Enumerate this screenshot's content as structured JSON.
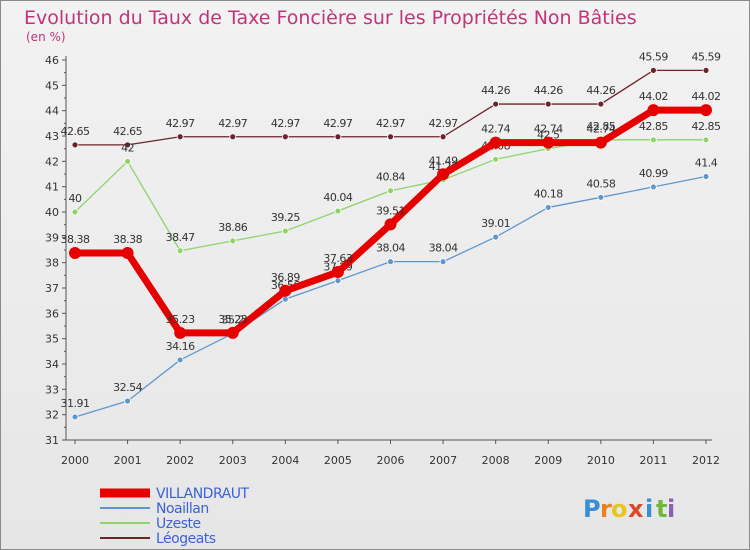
{
  "chart_data": {
    "type": "line",
    "title": "Evolution du Taux de Taxe Foncière sur les Propriétés Non Bâties",
    "subtitle": "(en %)",
    "ylim": [
      31,
      46
    ],
    "yticks": [
      "31",
      "32",
      "33",
      "34",
      "35",
      "36",
      "37",
      "38",
      "39",
      "40",
      "41",
      "42",
      "43",
      "44",
      "45",
      "46"
    ],
    "categories": [
      "2000",
      "2001",
      "2002",
      "2003",
      "2004",
      "2005",
      "2006",
      "2007",
      "2008",
      "2009",
      "2010",
      "2011",
      "2012"
    ],
    "series": [
      {
        "name": "Léogeats",
        "color": "#6b2428",
        "values": [
          42.65,
          42.65,
          42.97,
          42.97,
          42.97,
          42.97,
          42.97,
          42.97,
          44.26,
          44.26,
          44.26,
          45.59,
          45.59
        ],
        "labels": [
          "42.65",
          "42.65",
          "42.97",
          "42.97",
          "42.97",
          "42.97",
          "42.97",
          "42.97",
          "44.26",
          "44.26",
          "44.26",
          "45.59",
          "45.59"
        ]
      },
      {
        "name": "Uzeste",
        "color": "#8fd46a",
        "values": [
          40,
          42,
          38.47,
          38.86,
          39.25,
          40.04,
          40.84,
          41.27,
          42.08,
          42.5,
          42.85,
          42.85,
          42.85
        ],
        "labels": [
          "40",
          "42",
          "38.47",
          "38.86",
          "39.25",
          "40.04",
          "40.84",
          "41.27",
          "42.08",
          "42.5",
          "42.85",
          "42.85",
          "42.85"
        ]
      },
      {
        "name": "Noaillan",
        "color": "#5f97cc",
        "values": [
          31.91,
          32.54,
          34.16,
          35.2,
          36.56,
          37.29,
          38.04,
          38.04,
          39.01,
          40.18,
          40.58,
          40.99,
          41.4
        ],
        "labels": [
          "31.91",
          "32.54",
          "34.16",
          "35.2",
          "36.56",
          "37.29",
          "38.04",
          "38.04",
          "39.01",
          "40.18",
          "40.58",
          "40.99",
          "41.4"
        ]
      },
      {
        "name": "VILLANDRAUT",
        "color": "#e60000",
        "values": [
          38.38,
          38.38,
          35.23,
          35.23,
          36.89,
          37.63,
          39.51,
          41.49,
          42.74,
          42.74,
          42.74,
          44.02,
          44.02
        ],
        "labels": [
          "38.38",
          "38.38",
          "35.23",
          "35.23",
          "36.89",
          "37.63",
          "39.51",
          "41.49",
          "42.74",
          "42.74",
          "42.74",
          "44.02",
          "44.02"
        ]
      }
    ],
    "legend": [
      "VILLANDRAUT",
      "Noaillan",
      "Uzeste",
      "Léogeats"
    ],
    "legend_position": "bottom-left",
    "grid": false
  },
  "logo": {
    "letters": [
      "P",
      "r",
      "o",
      "x",
      "i",
      "t",
      "i"
    ],
    "colors": [
      "#3a8fd1",
      "#e8821e",
      "#e8c51e",
      "#d94b2b",
      "#3a8fd1",
      "#6fb83a",
      "#8e5fb0"
    ]
  }
}
